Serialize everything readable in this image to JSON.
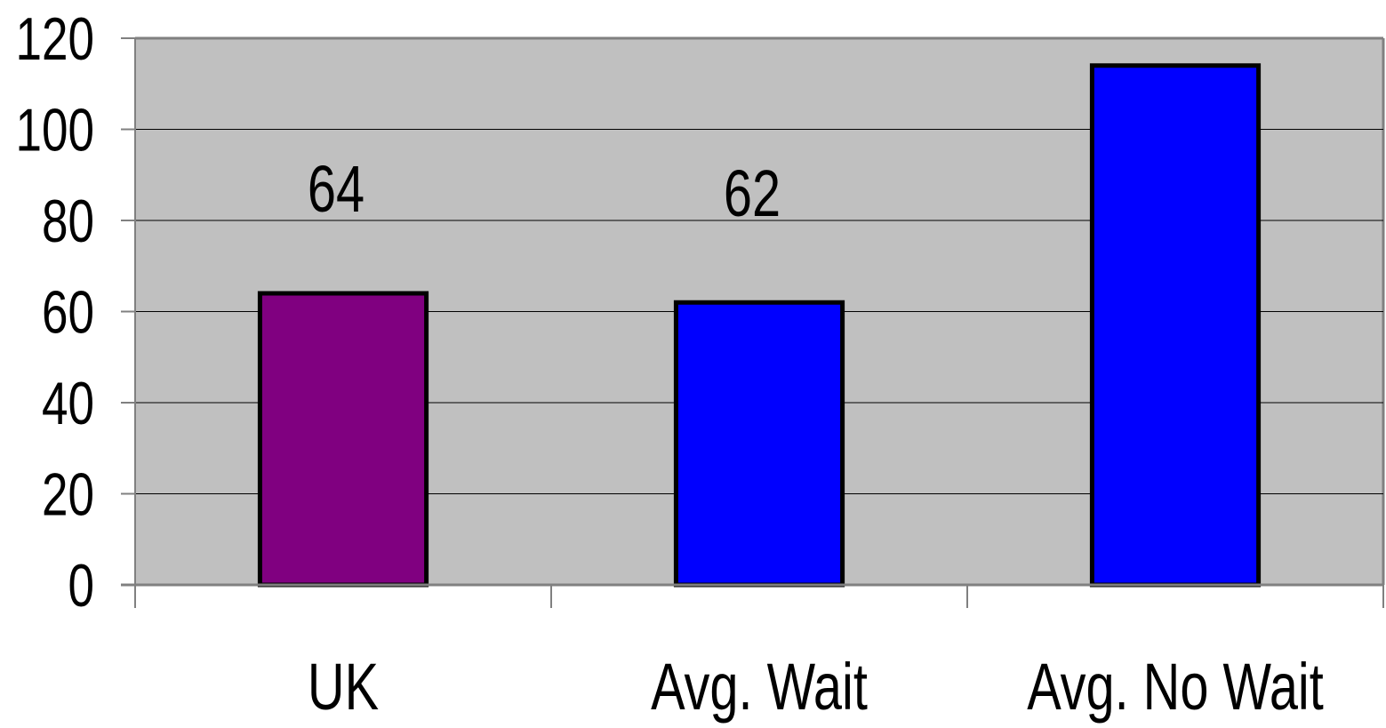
{
  "colors": {
    "plot_background": "#c0c0c0",
    "frame": "#808080",
    "gridline": "#000000",
    "bar_outline": "#000000",
    "text": "#000000"
  },
  "chart_data": {
    "type": "bar",
    "title": "",
    "xlabel": "",
    "ylabel": "",
    "categories": [
      "UK",
      "Avg. Wait",
      "Avg. No Wait"
    ],
    "values": [
      64,
      62,
      114
    ],
    "bar_colors": [
      "#800080",
      "#0000ff",
      "#0000ff"
    ],
    "data_labels": [
      "64",
      "62",
      ""
    ],
    "ylim": [
      0,
      120
    ],
    "yticks": [
      0,
      20,
      40,
      60,
      80,
      100,
      120
    ],
    "grid": true,
    "legend": "none"
  }
}
